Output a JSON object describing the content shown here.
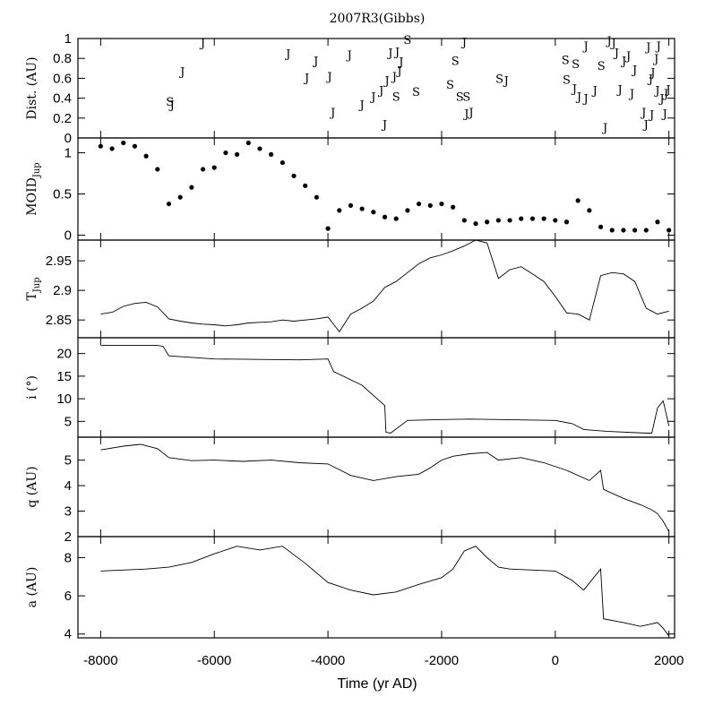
{
  "chart_data": {
    "type": "line",
    "title": "2007R3(Gibbs)",
    "xlabel": "Time (yr AD)",
    "xlim": [
      -8400,
      2100
    ],
    "x_ticks": [
      -8000,
      -6000,
      -4000,
      -2000,
      0,
      2000
    ],
    "x_tick_labels": [
      "-8000",
      "-6000",
      "-4000",
      "-2000",
      "0",
      "2000"
    ],
    "panels": [
      {
        "id": "dist",
        "type": "scatter",
        "ylabel": "Dist. (AU)",
        "ylim": [
          0,
          1
        ],
        "y_ticks": [
          0,
          0.2,
          0.4,
          0.6,
          0.8,
          1
        ],
        "y_tick_labels": [
          "0",
          "0.2",
          "0.4",
          "0.6",
          "0.8",
          "1"
        ],
        "series": [
          {
            "name": "J",
            "points": [
              [
                -6740,
                0.34
              ],
              [
                -6560,
                0.67
              ],
              [
                -6200,
                0.96
              ],
              [
                -4700,
                0.85
              ],
              [
                -4370,
                0.61
              ],
              [
                -4210,
                0.78
              ],
              [
                -3970,
                0.62
              ],
              [
                -3910,
                0.26
              ],
              [
                -3620,
                0.84
              ],
              [
                -3400,
                0.34
              ],
              [
                -3200,
                0.42
              ],
              [
                -3060,
                0.48
              ],
              [
                -3000,
                0.14
              ],
              [
                -2960,
                0.58
              ],
              [
                -2900,
                0.86
              ],
              [
                -2830,
                0.62
              ],
              [
                -2780,
                0.87
              ],
              [
                -2740,
                0.68
              ],
              [
                -2710,
                0.77
              ],
              [
                -1600,
                0.97
              ],
              [
                -1560,
                0.25
              ],
              [
                -1480,
                0.26
              ],
              [
                -860,
                0.58
              ],
              [
                340,
                0.5
              ],
              [
                420,
                0.42
              ],
              [
                540,
                0.4
              ],
              [
                540,
                0.93
              ],
              [
                700,
                0.48
              ],
              [
                880,
                0.11
              ],
              [
                950,
                0.98
              ],
              [
                1030,
                0.96
              ],
              [
                1080,
                0.86
              ],
              [
                1140,
                0.49
              ],
              [
                1210,
                0.78
              ],
              [
                1290,
                0.83
              ],
              [
                1350,
                0.45
              ],
              [
                1400,
                0.69
              ],
              [
                1560,
                0.26
              ],
              [
                1600,
                0.14
              ],
              [
                1640,
                0.92
              ],
              [
                1680,
                0.6
              ],
              [
                1700,
                0.24
              ],
              [
                1720,
                0.66
              ],
              [
                1780,
                0.8
              ],
              [
                1800,
                0.48
              ],
              [
                1820,
                0.93
              ],
              [
                1880,
                0.4
              ],
              [
                1930,
                0.25
              ],
              [
                1950,
                0.45
              ],
              [
                1990,
                0.49
              ]
            ]
          },
          {
            "name": "S",
            "points": [
              [
                -6780,
                0.37
              ],
              [
                -2800,
                0.42
              ],
              [
                -2600,
                0.99
              ],
              [
                -2450,
                0.47
              ],
              [
                -1850,
                0.54
              ],
              [
                -1760,
                0.78
              ],
              [
                -1680,
                0.42
              ],
              [
                -1560,
                0.42
              ],
              [
                -980,
                0.6
              ],
              [
                180,
                0.79
              ],
              [
                200,
                0.59
              ],
              [
                360,
                0.75
              ],
              [
                810,
                0.73
              ]
            ]
          }
        ]
      },
      {
        "id": "moid",
        "type": "scatter",
        "ylabel": "MOID",
        "ylabel_sub": "Jup",
        "ylim": [
          -0.06,
          1.18
        ],
        "y_ticks": [
          0,
          0.5,
          1
        ],
        "y_tick_labels": [
          "0",
          "0.5",
          "1"
        ],
        "x": [
          -8000,
          -7800,
          -7600,
          -7400,
          -7200,
          -7000,
          -6800,
          -6600,
          -6400,
          -6200,
          -6000,
          -5800,
          -5600,
          -5400,
          -5200,
          -5000,
          -4800,
          -4600,
          -4400,
          -4200,
          -4000,
          -3800,
          -3600,
          -3400,
          -3200,
          -3000,
          -2800,
          -2600,
          -2400,
          -2200,
          -2000,
          -1800,
          -1600,
          -1400,
          -1200,
          -1000,
          -800,
          -600,
          -400,
          -200,
          0,
          200,
          400,
          600,
          800,
          1000,
          1200,
          1400,
          1600,
          1800,
          2000
        ],
        "values": [
          1.08,
          1.05,
          1.12,
          1.08,
          0.96,
          0.8,
          0.38,
          0.46,
          0.58,
          0.8,
          0.82,
          1.0,
          0.98,
          1.12,
          1.05,
          0.98,
          0.88,
          0.72,
          0.6,
          0.46,
          0.08,
          0.3,
          0.36,
          0.32,
          0.28,
          0.22,
          0.2,
          0.3,
          0.38,
          0.36,
          0.38,
          0.34,
          0.18,
          0.14,
          0.16,
          0.18,
          0.18,
          0.2,
          0.2,
          0.2,
          0.18,
          0.16,
          0.42,
          0.3,
          0.1,
          0.06,
          0.06,
          0.06,
          0.06,
          0.16,
          0.06
        ]
      },
      {
        "id": "tjup",
        "type": "line",
        "ylabel": "T",
        "ylabel_sub": "Jup",
        "ylim": [
          2.82,
          2.985
        ],
        "y_ticks": [
          2.85,
          2.9,
          2.95
        ],
        "y_tick_labels": [
          "2.85",
          "2.9",
          "2.95"
        ],
        "x": [
          -8000,
          -7800,
          -7600,
          -7400,
          -7200,
          -7000,
          -6800,
          -6600,
          -6400,
          -6200,
          -6000,
          -5800,
          -5600,
          -5400,
          -5200,
          -5000,
          -4800,
          -4600,
          -4400,
          -4200,
          -4000,
          -3800,
          -3600,
          -3400,
          -3200,
          -3000,
          -2800,
          -2600,
          -2400,
          -2200,
          -2000,
          -1800,
          -1600,
          -1400,
          -1200,
          -1000,
          -800,
          -600,
          -400,
          -200,
          0,
          200,
          400,
          600,
          800,
          1000,
          1200,
          1400,
          1600,
          1800,
          2000
        ],
        "values": [
          2.86,
          2.863,
          2.873,
          2.878,
          2.88,
          2.872,
          2.852,
          2.848,
          2.845,
          2.843,
          2.842,
          2.84,
          2.842,
          2.845,
          2.846,
          2.847,
          2.85,
          2.848,
          2.85,
          2.852,
          2.855,
          2.83,
          2.86,
          2.87,
          2.882,
          2.905,
          2.915,
          2.93,
          2.945,
          2.955,
          2.96,
          2.967,
          2.975,
          2.985,
          2.98,
          2.92,
          2.935,
          2.94,
          2.928,
          2.915,
          2.89,
          2.862,
          2.86,
          2.85,
          2.925,
          2.93,
          2.928,
          2.915,
          2.87,
          2.86,
          2.865
        ]
      },
      {
        "id": "incl",
        "type": "line",
        "ylabel": "i (°)",
        "ylim": [
          1.5,
          23.5
        ],
        "y_ticks": [
          5,
          10,
          15,
          20
        ],
        "y_tick_labels": [
          "5",
          "10",
          "15",
          "20"
        ],
        "x": [
          -8000,
          -7000,
          -6900,
          -6800,
          -6000,
          -4500,
          -4000,
          -3900,
          -3400,
          -3000,
          -2980,
          -2900,
          -2600,
          -2000,
          -1500,
          -1000,
          0,
          300,
          500,
          900,
          1600,
          1700,
          1800,
          1900,
          2000
        ],
        "values": [
          21.8,
          21.8,
          21.6,
          19.5,
          18.8,
          18.6,
          18.8,
          16.0,
          13.0,
          8.5,
          2.6,
          2.4,
          5.2,
          5.4,
          5.5,
          5.4,
          5.2,
          4.5,
          3.2,
          2.8,
          2.4,
          2.4,
          8.0,
          9.5,
          4.0
        ]
      },
      {
        "id": "q",
        "type": "line",
        "ylabel": "q (AU)",
        "ylim": [
          2.0,
          5.9
        ],
        "y_ticks": [
          2,
          3,
          4,
          5
        ],
        "y_tick_labels": [
          "2",
          "3",
          "4",
          "5"
        ],
        "x": [
          -8000,
          -7600,
          -7300,
          -7000,
          -6800,
          -6400,
          -6000,
          -5500,
          -5000,
          -4500,
          -4000,
          -3600,
          -3200,
          -2800,
          -2400,
          -2200,
          -2000,
          -1800,
          -1500,
          -1200,
          -1000,
          -600,
          -200,
          200,
          600,
          800,
          850,
          1200,
          1500,
          1700,
          1800,
          1900,
          2000
        ],
        "values": [
          5.4,
          5.55,
          5.62,
          5.45,
          5.1,
          4.98,
          5.0,
          4.95,
          5.0,
          4.9,
          4.85,
          4.4,
          4.2,
          4.35,
          4.45,
          4.7,
          5.0,
          5.15,
          5.25,
          5.3,
          5.0,
          5.1,
          4.9,
          4.6,
          4.2,
          4.6,
          3.85,
          3.5,
          3.25,
          3.05,
          2.9,
          2.6,
          2.2
        ]
      },
      {
        "id": "a",
        "type": "line",
        "ylabel": "a (AU)",
        "ylim": [
          3.8,
          9.1
        ],
        "y_ticks": [
          4,
          6,
          8
        ],
        "y_tick_labels": [
          "4",
          "6",
          "8"
        ],
        "x": [
          -8000,
          -7600,
          -7200,
          -6800,
          -6400,
          -6000,
          -5600,
          -5200,
          -4800,
          -4400,
          -4000,
          -3600,
          -3200,
          -2800,
          -2400,
          -2000,
          -1800,
          -1600,
          -1400,
          -1200,
          -1000,
          -800,
          -400,
          0,
          300,
          500,
          800,
          850,
          1200,
          1500,
          1800,
          1900,
          2000
        ],
        "values": [
          7.3,
          7.35,
          7.4,
          7.5,
          7.75,
          8.2,
          8.6,
          8.4,
          8.6,
          7.7,
          6.7,
          6.3,
          6.05,
          6.2,
          6.6,
          6.95,
          7.4,
          8.35,
          8.6,
          8.0,
          7.5,
          7.4,
          7.35,
          7.3,
          6.8,
          6.3,
          7.4,
          4.8,
          4.6,
          4.4,
          4.6,
          4.3,
          3.9
        ]
      }
    ]
  }
}
